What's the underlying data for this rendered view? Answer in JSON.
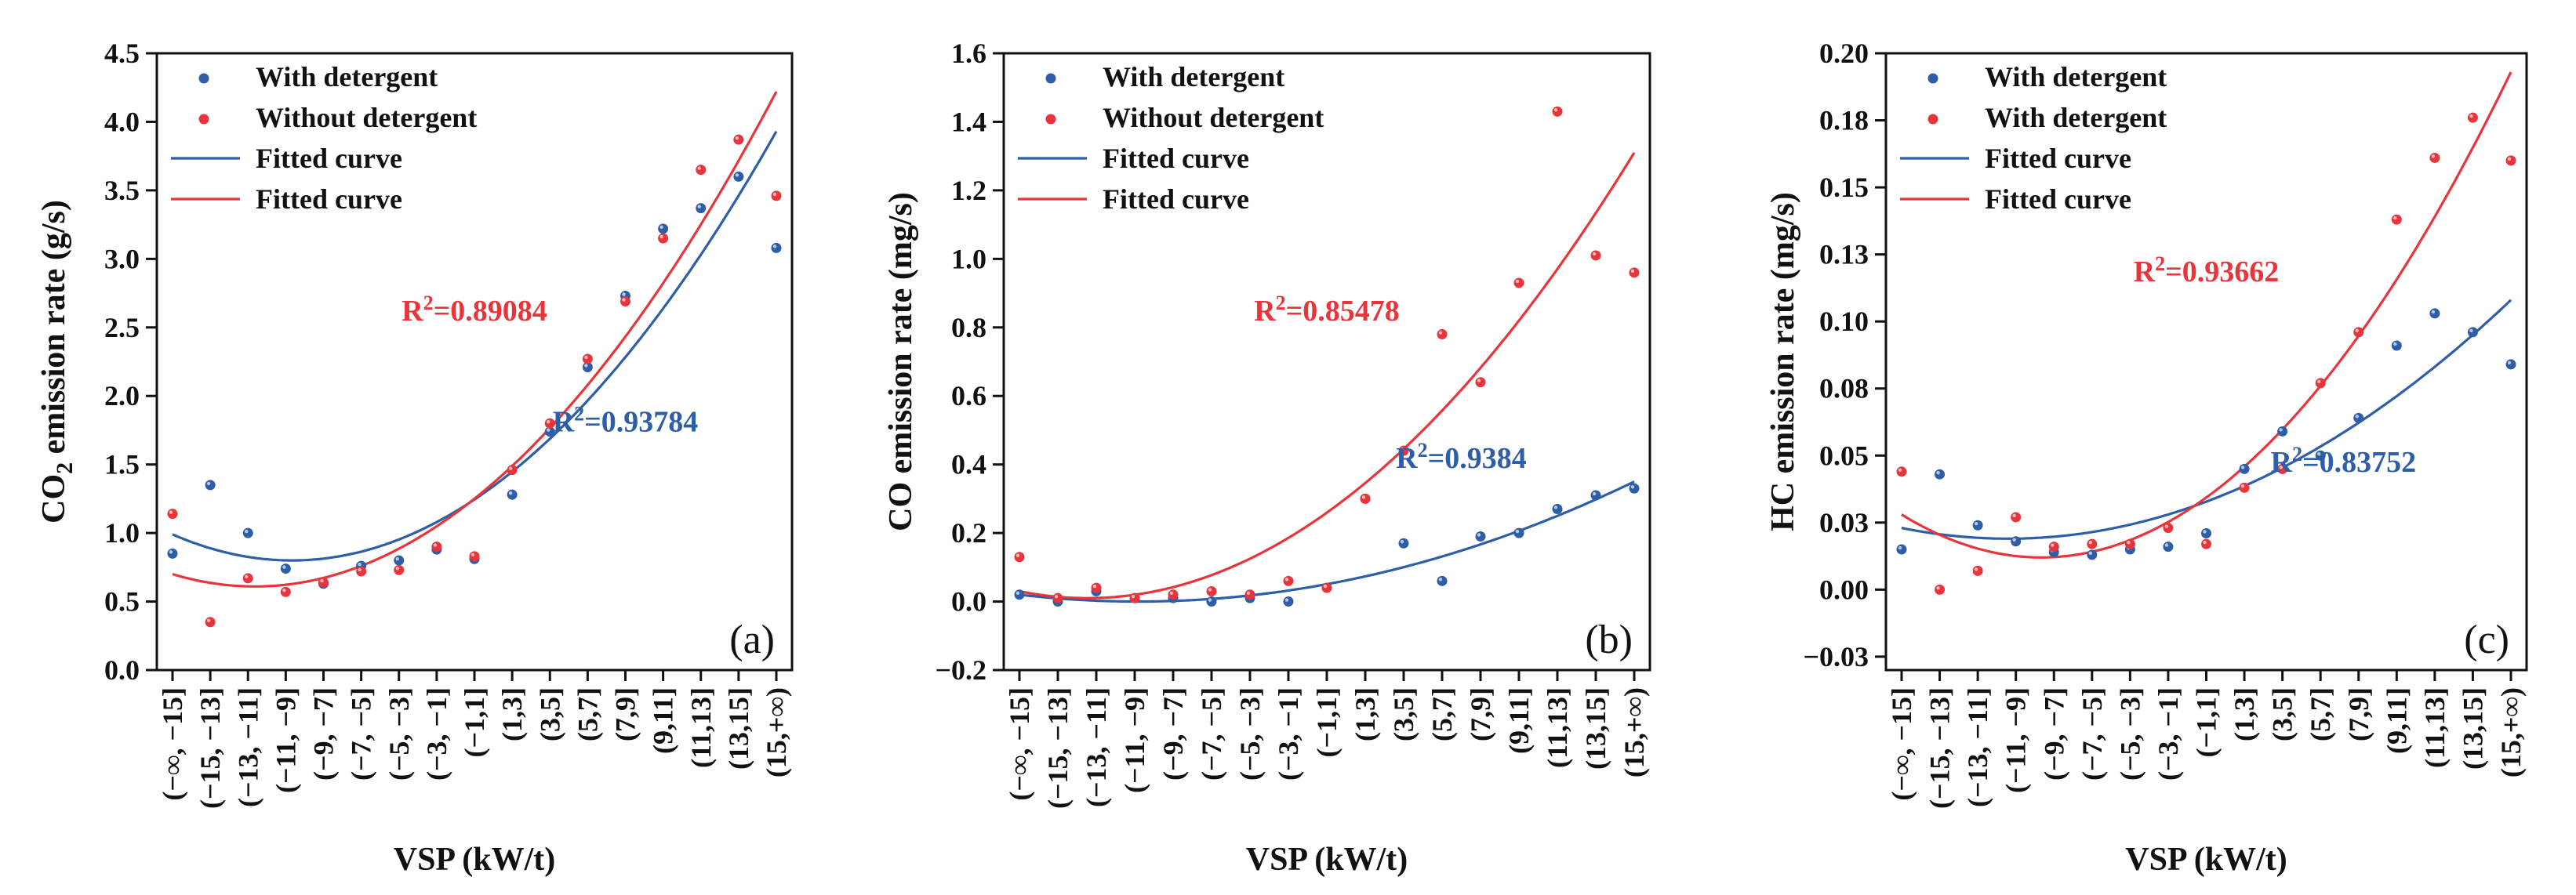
{
  "colors": {
    "blue": "#2e5ea8",
    "red": "#e8353b",
    "axis": "#111111"
  },
  "chart_data": [
    {
      "type": "scatter",
      "panel_label": "(a)",
      "xlabel": "VSP (kW/t)",
      "ylabel_main": "CO",
      "ylabel_sub": "2",
      "ylabel_rest": " emission rate (g/s)",
      "ylim": [
        0,
        4.5
      ],
      "yticks": [
        "0.0",
        "0.5",
        "1.0",
        "1.5",
        "2.0",
        "2.5",
        "3.0",
        "3.5",
        "4.0",
        "4.5"
      ],
      "ytick_values": [
        0,
        0.5,
        1,
        1.5,
        2,
        2.5,
        3,
        3.5,
        4,
        4.5
      ],
      "categories": [
        "(−∞, −15]",
        "(−15, −13]",
        "(−13, −11]",
        "(−11, −9]",
        "(−9, −7]",
        "(−7, −5]",
        "(−5, −3]",
        "(−3, −1]",
        "(−1,1]",
        "(1,3]",
        "(3,5]",
        "(5,7]",
        "(7,9]",
        "(9,11]",
        "(11,13]",
        "(13,15]",
        "(15,+∞)"
      ],
      "legend": [
        "With detergent",
        "Without detergent",
        "Fitted curve",
        "Fitted curve"
      ],
      "series": [
        {
          "name": "With detergent",
          "color": "blue",
          "values": [
            0.85,
            1.35,
            1.0,
            0.74,
            0.63,
            0.76,
            0.8,
            0.88,
            0.81,
            1.28,
            1.74,
            2.21,
            2.73,
            3.22,
            3.37,
            3.6,
            3.08
          ]
        },
        {
          "name": "Without detergent",
          "color": "red",
          "values": [
            1.14,
            0.35,
            0.67,
            0.57,
            0.64,
            0.72,
            0.73,
            0.9,
            0.83,
            1.46,
            1.8,
            2.27,
            2.69,
            3.15,
            3.65,
            3.87,
            3.46
          ]
        }
      ],
      "fits": [
        {
          "name": "Fitted curve",
          "color": "blue",
          "start": 0.99,
          "end": 3.93,
          "minimum": 0.8
        },
        {
          "name": "Fitted curve",
          "color": "red",
          "start": 0.7,
          "end": 4.22,
          "minimum": 0.61
        }
      ],
      "annotations": [
        {
          "prefix": "R",
          "sup": "2",
          "text": "=0.89084",
          "color": "red",
          "x_category": 8.0,
          "y": 2.55
        },
        {
          "prefix": "R",
          "sup": "2",
          "text": "=0.93784",
          "color": "blue",
          "x_category": 12.0,
          "y": 1.74
        }
      ]
    },
    {
      "type": "scatter",
      "panel_label": "(b)",
      "xlabel": "VSP (kW/t)",
      "ylabel_main": "CO",
      "ylabel_sub": "",
      "ylabel_rest": " emission rate (mg/s)",
      "ylim": [
        -0.2,
        1.6
      ],
      "yticks": [
        "−0.2",
        "0.0",
        "0.2",
        "0.4",
        "0.6",
        "0.8",
        "1.0",
        "1.2",
        "1.4",
        "1.6"
      ],
      "ytick_values": [
        -0.2,
        0,
        0.2,
        0.4,
        0.6,
        0.8,
        1.0,
        1.2,
        1.4,
        1.6
      ],
      "categories": [
        "(−∞, −15]",
        "(−15, −13]",
        "(−13, −11]",
        "(−11, −9]",
        "(−9, −7]",
        "(−7, −5]",
        "(−5, −3]",
        "(−3, −1]",
        "(−1,1]",
        "(1,3]",
        "(3,5]",
        "(5,7]",
        "(7,9]",
        "(9,11]",
        "(11,13]",
        "(13,15]",
        "(15,+∞)"
      ],
      "legend": [
        "With detergent",
        "Without detergent",
        "Fitted curve",
        "Fitted curve"
      ],
      "series": [
        {
          "name": "With detergent",
          "color": "blue",
          "values": [
            0.02,
            0.0,
            0.03,
            0.01,
            0.01,
            0.0,
            0.01,
            0.0,
            0.04,
            0.3,
            0.17,
            0.06,
            0.19,
            0.2,
            0.27,
            0.31,
            0.33
          ]
        },
        {
          "name": "Without detergent",
          "color": "red",
          "values": [
            0.13,
            0.01,
            0.04,
            0.01,
            0.02,
            0.03,
            0.02,
            0.06,
            0.04,
            0.3,
            0.44,
            0.78,
            0.64,
            0.93,
            1.43,
            1.01,
            0.96
          ]
        }
      ],
      "fits": [
        {
          "name": "Fitted curve",
          "color": "blue",
          "start": 0.02,
          "end": 0.35,
          "minimum": 0.0
        },
        {
          "name": "Fitted curve",
          "color": "red",
          "start": 0.03,
          "end": 1.31,
          "minimum": 0.01
        }
      ],
      "annotations": [
        {
          "prefix": "R",
          "sup": "2",
          "text": "=0.85478",
          "color": "red",
          "x_category": 8.0,
          "y": 0.82
        },
        {
          "prefix": "R",
          "sup": "2",
          "text": "=0.9384",
          "color": "blue",
          "x_category": 11.5,
          "y": 0.39
        }
      ]
    },
    {
      "type": "scatter",
      "panel_label": "(c)",
      "xlabel": "VSP (kW/t)",
      "ylabel_main": "HC",
      "ylabel_sub": "",
      "ylabel_rest": " emission rate (mg/s)",
      "ylim": [
        -0.03,
        0.2
      ],
      "yticks": [
        "−0.03",
        "0.00",
        "0.03",
        "0.05",
        "0.08",
        "0.10",
        "0.13",
        "0.15",
        "0.18",
        "0.20"
      ],
      "ytick_values": [
        -0.025,
        0,
        0.025,
        0.05,
        0.075,
        0.1,
        0.125,
        0.15,
        0.175,
        0.2
      ],
      "categories": [
        "(−∞, −15]",
        "(−15, −13]",
        "(−13, −11]",
        "(−11, −9]",
        "(−9, −7]",
        "(−7, −5]",
        "(−5, −3]",
        "(−3, −1]",
        "(−1,1]",
        "(1,3]",
        "(3,5]",
        "(5,7]",
        "(7,9]",
        "(9,11]",
        "(11,13]",
        "(13,15]",
        "(15,+∞)"
      ],
      "legend": [
        "With detergent",
        "With detergent",
        "Fitted curve",
        "Fitted curve"
      ],
      "series": [
        {
          "name": "With detergent",
          "color": "blue",
          "values": [
            0.015,
            0.043,
            0.024,
            0.018,
            0.014,
            0.013,
            0.015,
            0.016,
            0.021,
            0.045,
            0.059,
            0.05,
            0.064,
            0.091,
            0.103,
            0.096,
            0.084
          ]
        },
        {
          "name": "With detergent",
          "color": "red",
          "values": [
            0.044,
            0.0,
            0.007,
            0.027,
            0.016,
            0.017,
            0.017,
            0.023,
            0.017,
            0.038,
            0.045,
            0.077,
            0.096,
            0.138,
            0.161,
            0.176,
            0.16
          ]
        }
      ],
      "fits": [
        {
          "name": "Fitted curve",
          "color": "blue",
          "start": 0.023,
          "end": 0.108,
          "minimum": 0.019
        },
        {
          "name": "Fitted curve",
          "color": "red",
          "start": 0.028,
          "end": 0.193,
          "minimum": 0.012
        }
      ],
      "annotations": [
        {
          "prefix": "R",
          "sup": "2",
          "text": "=0.93662",
          "color": "red",
          "x_category": 8.0,
          "y": 0.115
        },
        {
          "prefix": "R",
          "sup": "2",
          "text": "=0.83752",
          "color": "blue",
          "x_category": 11.6,
          "y": 0.044
        }
      ]
    }
  ]
}
